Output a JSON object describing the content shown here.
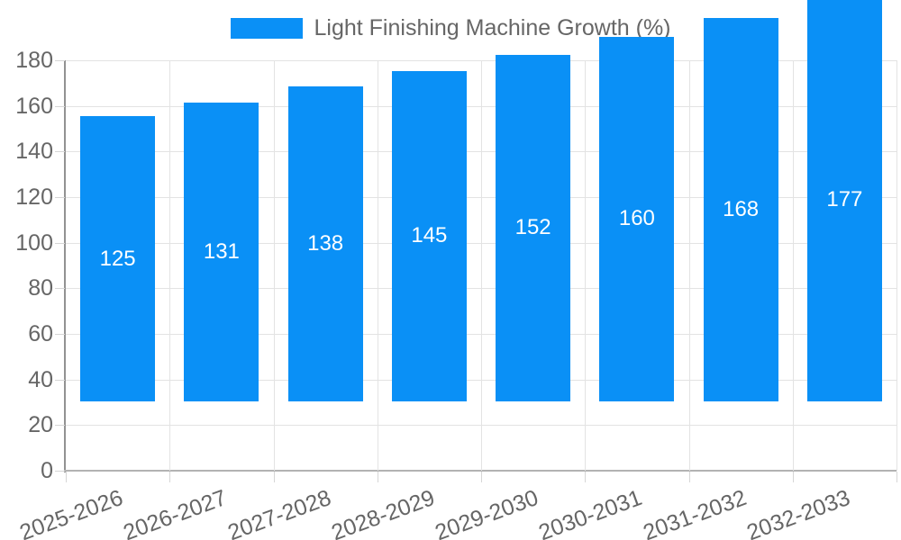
{
  "chart_data": {
    "type": "bar",
    "legend": {
      "label": "Light Finishing Machine Growth (%)",
      "position": "top"
    },
    "categories": [
      "2025-2026",
      "2026-2027",
      "2027-2028",
      "2028-2029",
      "2029-2030",
      "2030-2031",
      "2031-2032",
      "2032-2033"
    ],
    "values": [
      125,
      131,
      138,
      145,
      152,
      160,
      168,
      177
    ],
    "ylabel": "",
    "xlabel": "",
    "ylim": [
      0,
      180
    ],
    "ytick_step": 20,
    "grid": true,
    "x_label_rotation_deg": -20,
    "colors": {
      "bar": "#0a90f6",
      "value_label": "#ffffff",
      "axis_text": "#666666",
      "grid_line": "#e3e3e3",
      "y_axis_line": "#929292",
      "x_axis_line": "#b3b3b3"
    }
  }
}
